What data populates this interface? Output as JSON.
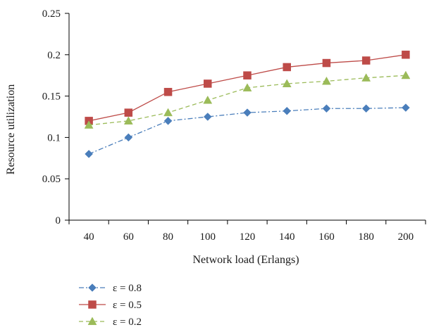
{
  "chart_data": {
    "type": "line",
    "title": "",
    "xlabel": "Network load (Erlangs)",
    "ylabel": "Resource utilization",
    "categories": [
      "40",
      "60",
      "80",
      "100",
      "120",
      "140",
      "160",
      "180",
      "200"
    ],
    "ylim": [
      0,
      0.25
    ],
    "yticks": [
      "0",
      "0.05",
      "0.1",
      "0.15",
      "0.2",
      "0.25"
    ],
    "grid": false,
    "legend_position": "bottom-left",
    "series": [
      {
        "name": "ε = 0.8",
        "values": [
          0.08,
          0.1,
          0.12,
          0.125,
          0.13,
          0.132,
          0.135,
          0.135,
          0.136
        ],
        "color": "#4a7ebb",
        "marker": "diamond",
        "dash": "dash-dot"
      },
      {
        "name": "ε = 0.5",
        "values": [
          0.12,
          0.13,
          0.155,
          0.165,
          0.175,
          0.185,
          0.19,
          0.193,
          0.2
        ],
        "color": "#be4b48",
        "marker": "square",
        "dash": "solid"
      },
      {
        "name": "ε = 0.2",
        "values": [
          0.115,
          0.12,
          0.13,
          0.145,
          0.16,
          0.165,
          0.168,
          0.172,
          0.175
        ],
        "color": "#9bbb59",
        "marker": "triangle",
        "dash": "dash"
      }
    ]
  }
}
